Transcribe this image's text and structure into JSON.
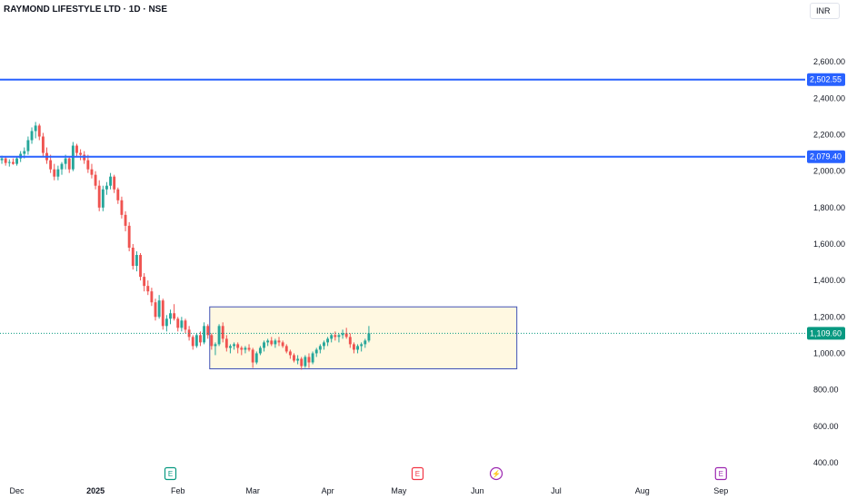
{
  "header": {
    "title": "RAYMOND LIFESTYLE LTD · 1D · NSE",
    "currency": "INR"
  },
  "colors": {
    "up": "#26a69a",
    "down": "#ef5350",
    "hline": "#2962ff",
    "last_price": "#089981",
    "box_border": "#3f51b5",
    "box_fill": "#fff8e1",
    "earnings": "#089981",
    "earnings_alt": "#f23645",
    "dividend": "#9c27b0"
  },
  "chart_data": {
    "type": "candlestick",
    "y_axis": {
      "min": 310,
      "max": 2790,
      "ticks": [
        400,
        600,
        800,
        1000,
        1200,
        1400,
        1600,
        1800,
        2000,
        2200,
        2400,
        2600
      ],
      "tick_labels": [
        "400.00",
        "600.00",
        "800.00",
        "1,000.00",
        "1,200.00",
        "1,400.00",
        "1,600.00",
        "1,800.00",
        "2,000.00",
        "2,200.00",
        "2,400.00",
        "2,600.00"
      ]
    },
    "x_axis": {
      "labels": [
        {
          "label": "Dec",
          "index": 4,
          "bold": false
        },
        {
          "label": "2025",
          "index": 25,
          "bold": true
        },
        {
          "label": "Feb",
          "index": 47,
          "bold": false
        },
        {
          "label": "Mar",
          "index": 67,
          "bold": false
        },
        {
          "label": "Apr",
          "index": 87,
          "bold": false
        },
        {
          "label": "May",
          "index": 106,
          "bold": false
        },
        {
          "label": "Jun",
          "index": 127,
          "bold": false
        },
        {
          "label": "Jul",
          "index": 148,
          "bold": false
        },
        {
          "label": "Aug",
          "index": 171,
          "bold": false
        },
        {
          "label": "Sep",
          "index": 192,
          "bold": false
        }
      ],
      "visible_bars": 215
    },
    "horizontal_lines": [
      {
        "value": 2502.55,
        "label": "2,502.55"
      },
      {
        "value": 2079.4,
        "label": "2,079.40"
      }
    ],
    "last_price": {
      "value": 1109.6,
      "label": "1,109.60"
    },
    "range_box": {
      "start_index": 56,
      "end_index": 137,
      "top": 1255,
      "bottom": 915
    },
    "events": [
      {
        "type": "earnings",
        "letter": "E",
        "index": 45
      },
      {
        "type": "earnings",
        "letter": "E",
        "index": 111
      },
      {
        "type": "dividend",
        "letter": "⚡",
        "index": 132
      },
      {
        "type": "earnings",
        "letter": "E",
        "index": 192
      }
    ],
    "ohlc": [
      [
        2060,
        2085,
        2040,
        2070
      ],
      [
        2070,
        2080,
        2030,
        2045
      ],
      [
        2045,
        2065,
        2025,
        2050
      ],
      [
        2050,
        2070,
        2035,
        2040
      ],
      [
        2040,
        2080,
        2030,
        2070
      ],
      [
        2070,
        2110,
        2050,
        2095
      ],
      [
        2095,
        2130,
        2070,
        2110
      ],
      [
        2110,
        2190,
        2090,
        2170
      ],
      [
        2170,
        2240,
        2150,
        2220
      ],
      [
        2220,
        2270,
        2180,
        2250
      ],
      [
        2250,
        2260,
        2170,
        2190
      ],
      [
        2190,
        2210,
        2080,
        2100
      ],
      [
        2100,
        2130,
        2040,
        2060
      ],
      [
        2060,
        2090,
        1990,
        2010
      ],
      [
        2010,
        2040,
        1950,
        1970
      ],
      [
        1970,
        2030,
        1950,
        2010
      ],
      [
        2010,
        2050,
        1980,
        2040
      ],
      [
        2040,
        2090,
        2010,
        2070
      ],
      [
        2070,
        2080,
        1990,
        2010
      ],
      [
        2010,
        2160,
        2000,
        2140
      ],
      [
        2140,
        2150,
        2080,
        2100
      ],
      [
        2100,
        2120,
        2060,
        2090
      ],
      [
        2090,
        2110,
        2040,
        2060
      ],
      [
        2060,
        2090,
        1990,
        2010
      ],
      [
        2010,
        2040,
        1960,
        1980
      ],
      [
        1980,
        2000,
        1900,
        1920
      ],
      [
        1920,
        1950,
        1780,
        1800
      ],
      [
        1800,
        1920,
        1780,
        1900
      ],
      [
        1900,
        1940,
        1870,
        1920
      ],
      [
        1920,
        1990,
        1900,
        1970
      ],
      [
        1970,
        1980,
        1880,
        1900
      ],
      [
        1900,
        1910,
        1820,
        1840
      ],
      [
        1840,
        1860,
        1740,
        1760
      ],
      [
        1760,
        1780,
        1670,
        1700
      ],
      [
        1700,
        1720,
        1560,
        1580
      ],
      [
        1580,
        1600,
        1460,
        1480
      ],
      [
        1480,
        1560,
        1450,
        1540
      ],
      [
        1540,
        1550,
        1400,
        1420
      ],
      [
        1420,
        1440,
        1340,
        1370
      ],
      [
        1370,
        1400,
        1320,
        1340
      ],
      [
        1340,
        1360,
        1260,
        1280
      ],
      [
        1280,
        1300,
        1180,
        1200
      ],
      [
        1200,
        1320,
        1190,
        1290
      ],
      [
        1290,
        1300,
        1130,
        1150
      ],
      [
        1150,
        1210,
        1120,
        1190
      ],
      [
        1190,
        1240,
        1160,
        1220
      ],
      [
        1220,
        1270,
        1180,
        1190
      ],
      [
        1190,
        1200,
        1120,
        1140
      ],
      [
        1140,
        1200,
        1120,
        1180
      ],
      [
        1180,
        1190,
        1110,
        1130
      ],
      [
        1130,
        1150,
        1070,
        1090
      ],
      [
        1090,
        1100,
        1020,
        1040
      ],
      [
        1040,
        1110,
        1030,
        1100
      ],
      [
        1100,
        1120,
        1040,
        1060
      ],
      [
        1060,
        1170,
        1050,
        1150
      ],
      [
        1150,
        1160,
        1080,
        1100
      ],
      [
        1100,
        1110,
        1020,
        1040
      ],
      [
        1040,
        1060,
        990,
        1050
      ],
      [
        1050,
        1160,
        1040,
        1150
      ],
      [
        1150,
        1170,
        1060,
        1080
      ],
      [
        1080,
        1100,
        1010,
        1030
      ],
      [
        1030,
        1050,
        1000,
        1040
      ],
      [
        1040,
        1060,
        1020,
        1050
      ],
      [
        1050,
        1060,
        1000,
        1030
      ],
      [
        1030,
        1040,
        990,
        1020
      ],
      [
        1020,
        1040,
        1000,
        1030
      ],
      [
        1030,
        1050,
        1010,
        1020
      ],
      [
        1020,
        1030,
        920,
        950
      ],
      [
        950,
        1010,
        940,
        1000
      ],
      [
        1000,
        1040,
        990,
        1030
      ],
      [
        1030,
        1070,
        1010,
        1060
      ],
      [
        1060,
        1080,
        1040,
        1070
      ],
      [
        1070,
        1090,
        1040,
        1050
      ],
      [
        1050,
        1080,
        1030,
        1070
      ],
      [
        1070,
        1090,
        1040,
        1060
      ],
      [
        1060,
        1070,
        1030,
        1040
      ],
      [
        1040,
        1050,
        1000,
        1010
      ],
      [
        1010,
        1020,
        970,
        990
      ],
      [
        990,
        1000,
        950,
        960
      ],
      [
        960,
        990,
        940,
        970
      ],
      [
        970,
        980,
        910,
        930
      ],
      [
        930,
        990,
        920,
        980
      ],
      [
        980,
        1000,
        920,
        950
      ],
      [
        950,
        1010,
        940,
        1000
      ],
      [
        1000,
        1030,
        980,
        1020
      ],
      [
        1020,
        1050,
        1000,
        1040
      ],
      [
        1040,
        1070,
        1020,
        1060
      ],
      [
        1060,
        1090,
        1040,
        1080
      ],
      [
        1080,
        1110,
        1060,
        1100
      ],
      [
        1100,
        1120,
        1070,
        1090
      ],
      [
        1090,
        1110,
        1060,
        1100
      ],
      [
        1100,
        1130,
        1080,
        1110
      ],
      [
        1110,
        1140,
        1080,
        1090
      ],
      [
        1090,
        1110,
        1030,
        1050
      ],
      [
        1050,
        1060,
        1000,
        1020
      ],
      [
        1020,
        1050,
        1000,
        1040
      ],
      [
        1040,
        1060,
        1010,
        1050
      ],
      [
        1050,
        1080,
        1030,
        1070
      ],
      [
        1070,
        1150,
        1060,
        1110
      ]
    ]
  }
}
